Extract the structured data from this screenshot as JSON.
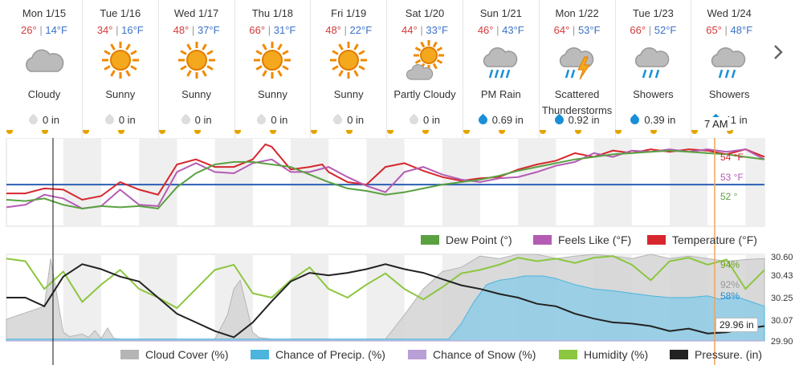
{
  "forecast": [
    {
      "date": "Mon 1/15",
      "hi": "26°",
      "lo": "14°F",
      "cond": "Cloudy",
      "icon": "cloudy-icon",
      "precip": "0 in",
      "wet": false
    },
    {
      "date": "Tue 1/16",
      "hi": "34°",
      "lo": "16°F",
      "cond": "Sunny",
      "icon": "sunny-icon",
      "precip": "0 in",
      "wet": false
    },
    {
      "date": "Wed 1/17",
      "hi": "48°",
      "lo": "37°F",
      "cond": "Sunny",
      "icon": "sunny-icon",
      "precip": "0 in",
      "wet": false
    },
    {
      "date": "Thu 1/18",
      "hi": "66°",
      "lo": "31°F",
      "cond": "Sunny",
      "icon": "sunny-icon",
      "precip": "0 in",
      "wet": false
    },
    {
      "date": "Fri 1/19",
      "hi": "48°",
      "lo": "22°F",
      "cond": "Sunny",
      "icon": "sunny-icon",
      "precip": "0 in",
      "wet": false
    },
    {
      "date": "Sat 1/20",
      "hi": "44°",
      "lo": "33°F",
      "cond": "Partly Cloudy",
      "icon": "partly-cloudy-icon",
      "precip": "0 in",
      "wet": false
    },
    {
      "date": "Sun 1/21",
      "hi": "46°",
      "lo": "43°F",
      "cond": "PM Rain",
      "icon": "rain-icon",
      "precip": "0.69 in",
      "wet": true
    },
    {
      "date": "Mon 1/22",
      "hi": "64°",
      "lo": "53°F",
      "cond": "Scattered Thunderstorms",
      "icon": "thunderstorm-icon",
      "precip": "0.92 in",
      "wet": true
    },
    {
      "date": "Tue 1/23",
      "hi": "66°",
      "lo": "52°F",
      "cond": "Showers",
      "icon": "showers-icon",
      "precip": "0.39 in",
      "wet": true
    },
    {
      "date": "Wed 1/24",
      "hi": "65°",
      "lo": "48°F",
      "cond": "Showers",
      "icon": "showers-icon",
      "precip": "41 in",
      "wet": true
    }
  ],
  "tooltip_time": "7 AM",
  "colors": {
    "temperature": "#d7262d",
    "feels_like": "#b45cb4",
    "dew_point": "#5aa141",
    "cloud_cover": "#b5b5b5",
    "precip": "#4cb4dd",
    "snow": "#b89fd6",
    "humidity": "#8cc63f",
    "pressure": "#222222",
    "hi": "#d33a3a",
    "lo": "#3a72c8"
  },
  "chart_data": [
    {
      "type": "line",
      "title": "",
      "legend": [
        "Dew Point (°)",
        "Feels Like (°F)",
        "Temperature (°F)"
      ],
      "legend_position": "bottom-right",
      "x_unit": "hours from Mon 1/15 00:00",
      "x_range": [
        0,
        240
      ],
      "y_range": [
        5,
        75
      ],
      "reference_line": 38,
      "hover_labels": {
        "temperature": "54 °F",
        "feels_like": "53 °F",
        "dew_point": "52 °"
      },
      "series": [
        {
          "name": "Temperature (°F)",
          "x": [
            0,
            6,
            12,
            18,
            24,
            30,
            36,
            42,
            48,
            54,
            60,
            66,
            72,
            78,
            82,
            84,
            90,
            96,
            100,
            102,
            108,
            114,
            120,
            126,
            132,
            138,
            144,
            150,
            156,
            162,
            168,
            174,
            180,
            186,
            192,
            198,
            204,
            210,
            216,
            222,
            228,
            234,
            240
          ],
          "y": [
            31,
            31,
            35,
            34,
            26,
            29,
            40,
            34,
            30,
            54,
            58,
            52,
            52,
            58,
            70,
            68,
            50,
            52,
            54,
            48,
            40,
            38,
            52,
            55,
            49,
            44,
            41,
            43,
            44,
            50,
            54,
            57,
            63,
            60,
            65,
            63,
            66,
            64,
            66,
            65,
            62,
            66,
            60
          ]
        },
        {
          "name": "Feels Like (°F)",
          "x": [
            0,
            6,
            12,
            18,
            24,
            30,
            36,
            42,
            48,
            54,
            60,
            66,
            72,
            78,
            84,
            90,
            96,
            102,
            108,
            114,
            120,
            126,
            132,
            138,
            144,
            150,
            156,
            162,
            168,
            174,
            180,
            186,
            192,
            198,
            204,
            210,
            216,
            222,
            228,
            234,
            240
          ],
          "y": [
            20,
            22,
            30,
            27,
            19,
            21,
            34,
            22,
            21,
            48,
            55,
            48,
            47,
            55,
            58,
            48,
            48,
            52,
            44,
            37,
            32,
            48,
            52,
            46,
            42,
            40,
            43,
            44,
            48,
            53,
            56,
            63,
            60,
            65,
            64,
            66,
            64,
            66,
            64,
            66,
            58
          ]
        },
        {
          "name": "Dew Point (°)",
          "x": [
            0,
            6,
            12,
            18,
            24,
            30,
            36,
            42,
            48,
            54,
            60,
            66,
            72,
            78,
            84,
            90,
            96,
            102,
            108,
            114,
            120,
            126,
            132,
            138,
            144,
            150,
            156,
            162,
            168,
            174,
            180,
            186,
            192,
            198,
            204,
            210,
            216,
            222,
            228,
            234,
            240
          ],
          "y": [
            26,
            25,
            27,
            22,
            19,
            21,
            20,
            21,
            19,
            36,
            47,
            54,
            56,
            56,
            54,
            52,
            46,
            40,
            35,
            33,
            30,
            32,
            35,
            38,
            40,
            42,
            45,
            49,
            52,
            55,
            58,
            60,
            62,
            63,
            64,
            65,
            64,
            63,
            62,
            60,
            58
          ]
        }
      ]
    },
    {
      "type": "area",
      "title": "",
      "legend": [
        "Cloud Cover (%)",
        "Chance of Precip. (%)",
        "Chance of Snow (%)",
        "Humidity (%)",
        "Pressure. (in)"
      ],
      "legend_position": "bottom",
      "x_unit": "hours from Mon 1/15 00:00",
      "x_range": [
        0,
        240
      ],
      "y_range_percent": [
        0,
        100
      ],
      "y_right_ticks": [
        "30.60",
        "30.43",
        "30.25",
        "30.07",
        "29.90"
      ],
      "y_right_range": [
        29.9,
        30.6
      ],
      "hover_labels": {
        "humidity": "94%",
        "cloud_cover": "92%",
        "precip": "58%",
        "pressure": "29.96 in"
      },
      "series": [
        {
          "name": "Cloud Cover (%)",
          "x": [
            0,
            12,
            14,
            18,
            20,
            24,
            26,
            28,
            30,
            32,
            34,
            36,
            66,
            70,
            72,
            74,
            76,
            78,
            80,
            84,
            90,
            120,
            126,
            132,
            138,
            144,
            150,
            156,
            162,
            168,
            174,
            180,
            186,
            192,
            198,
            204,
            210,
            216,
            222,
            228,
            234,
            240
          ],
          "y": [
            25,
            40,
            95,
            10,
            5,
            8,
            4,
            12,
            3,
            15,
            3,
            2,
            2,
            30,
            60,
            70,
            40,
            10,
            4,
            2,
            2,
            2,
            30,
            60,
            80,
            85,
            98,
            95,
            100,
            100,
            95,
            98,
            100,
            98,
            95,
            100,
            95,
            98,
            95,
            92,
            94,
            95
          ]
        },
        {
          "name": "Chance of Precip. (%)",
          "x": [
            0,
            140,
            144,
            148,
            152,
            156,
            160,
            164,
            170,
            174,
            180,
            186,
            192,
            198,
            204,
            210,
            216,
            222,
            226,
            228,
            232,
            236,
            240
          ],
          "y": [
            2,
            2,
            20,
            45,
            65,
            70,
            72,
            75,
            75,
            72,
            65,
            60,
            58,
            55,
            52,
            50,
            50,
            52,
            48,
            50,
            50,
            45,
            40
          ]
        },
        {
          "name": "Chance of Snow (%)",
          "x": [
            0,
            240
          ],
          "y": [
            0,
            0
          ]
        },
        {
          "name": "Humidity (%)",
          "x": [
            0,
            6,
            12,
            18,
            24,
            30,
            36,
            42,
            48,
            54,
            60,
            66,
            72,
            78,
            84,
            90,
            96,
            102,
            108,
            114,
            120,
            126,
            132,
            138,
            144,
            150,
            156,
            162,
            168,
            174,
            180,
            186,
            192,
            198,
            204,
            210,
            216,
            222,
            228,
            234,
            240
          ],
          "y": [
            95,
            92,
            60,
            80,
            45,
            65,
            82,
            60,
            50,
            38,
            60,
            82,
            88,
            55,
            50,
            70,
            85,
            60,
            50,
            65,
            78,
            60,
            48,
            62,
            78,
            82,
            88,
            96,
            92,
            95,
            90,
            96,
            98,
            88,
            70,
            92,
            96,
            88,
            94,
            60,
            82
          ]
        },
        {
          "name": "Pressure. (in)",
          "x": [
            0,
            6,
            12,
            18,
            24,
            30,
            36,
            42,
            48,
            54,
            60,
            66,
            72,
            78,
            84,
            90,
            96,
            102,
            108,
            114,
            120,
            126,
            132,
            138,
            144,
            150,
            156,
            162,
            168,
            174,
            180,
            186,
            192,
            198,
            204,
            210,
            216,
            222,
            228,
            234,
            240
          ],
          "y": [
            30.25,
            30.25,
            30.18,
            30.42,
            30.52,
            30.48,
            30.42,
            30.38,
            30.25,
            30.12,
            30.05,
            29.98,
            29.93,
            30.05,
            30.22,
            30.38,
            30.45,
            30.43,
            30.45,
            30.48,
            30.52,
            30.48,
            30.45,
            30.4,
            30.35,
            30.32,
            30.28,
            30.25,
            30.2,
            30.18,
            30.12,
            30.08,
            30.05,
            30.04,
            30.02,
            29.98,
            30.0,
            29.96,
            29.97,
            30.0,
            30.02
          ]
        }
      ]
    }
  ]
}
